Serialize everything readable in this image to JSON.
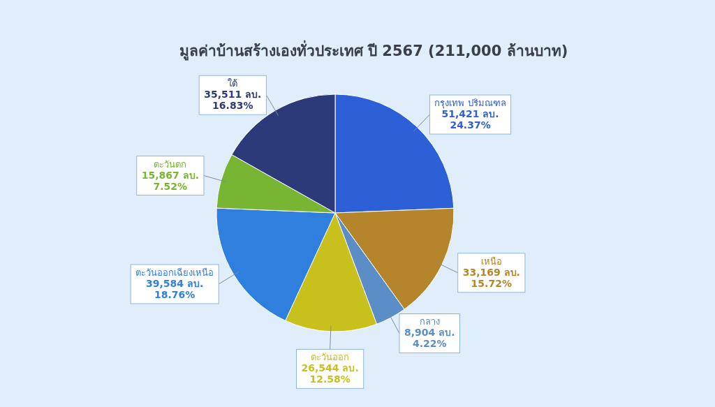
{
  "chart_data": {
    "type": "pie",
    "title": "มูลค่าบ้านสร้างเองทั่วประเทศ ปี 2567 (211,000 ล้านบาท)",
    "categories": [
      "กรุงเทพ ปริมณฑล",
      "เหนือ",
      "กลาง",
      "ตะวันออก",
      "ตะวันออกเฉียงเหนือ",
      "ตะวันตก",
      "ใต้"
    ],
    "values": [
      51421,
      33169,
      8904,
      26544,
      39584,
      15867,
      35511
    ],
    "colors": [
      "#2d5fd6",
      "#b5852c",
      "#5b8dc6",
      "#c8c01c",
      "#2f7fdf",
      "#78b532",
      "#2c3a7a"
    ],
    "value_labels": [
      "51,421 ลบ.\n24.37%",
      "33,169 ลบ.\n15.72%",
      "8,904 ลบ.\n4.22%",
      "26,544 ลบ.\n12.58%",
      "39,584 ลบ.\n18.76%",
      "15,867 ลบ.\n7.52%",
      "35,511 ลบ.\n16.83%"
    ]
  }
}
